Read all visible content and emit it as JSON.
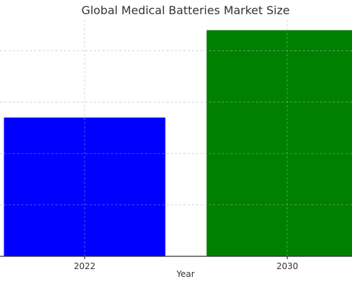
{
  "chart_data": {
    "type": "bar",
    "title": "Global Medical Batteries Market Size",
    "xlabel": "Year",
    "ylabel": "",
    "categories": [
      "2022",
      "2030"
    ],
    "values": [
      2.7,
      4.4
    ],
    "colors": [
      "#0000ff",
      "#008000"
    ],
    "ylim": [
      0,
      4.6
    ],
    "yticks": [
      1,
      2,
      3,
      4
    ],
    "grid": true
  }
}
